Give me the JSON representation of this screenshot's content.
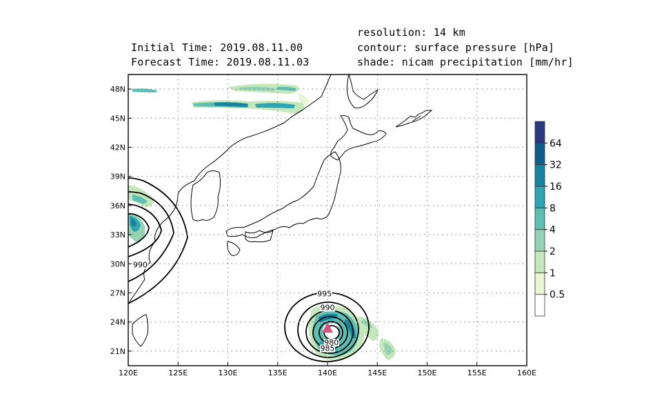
{
  "header": {
    "initial_time": "Initial Time: 2019.08.11.00",
    "forecast_time": "Forecast Time: 2019.08.11.03",
    "resolution": "resolution: 14 km",
    "contour": "contour: surface pressure [hPa]",
    "shade": "shade: nicam precipitation [mm/hr]"
  },
  "map": {
    "lon_range": [
      120,
      160
    ],
    "lat_range": [
      19.5,
      49.5
    ],
    "lon_ticks": [
      120,
      125,
      130,
      135,
      140,
      145,
      150,
      155,
      160
    ],
    "lon_labels": [
      "120E",
      "125E",
      "130E",
      "135E",
      "140E",
      "145E",
      "150E",
      "155E",
      "160E"
    ],
    "lat_ticks": [
      21,
      24,
      27,
      30,
      33,
      36,
      39,
      42,
      45,
      48
    ],
    "lat_labels": [
      "21N",
      "24N",
      "27N",
      "30N",
      "33N",
      "36N",
      "39N",
      "42N",
      "45N",
      "48N"
    ],
    "grid": "dotted",
    "typhoon_marker": {
      "lon": 140.0,
      "lat": 23.4,
      "color": "#d9507a"
    },
    "contour_labels": [
      {
        "text": "995",
        "lon": 139.7,
        "lat": 26.7
      },
      {
        "text": "990",
        "lon": 140.0,
        "lat": 25.3
      },
      {
        "text": "980",
        "lon": 140.4,
        "lat": 21.7
      },
      {
        "text": "985",
        "lon": 140.0,
        "lat": 21.1
      },
      {
        "text": "990",
        "lon": 121.2,
        "lat": 29.7
      }
    ]
  },
  "colorbar": {
    "labels": [
      "0.5",
      "1",
      "2",
      "4",
      "8",
      "16",
      "32",
      "64"
    ],
    "colors": [
      "#ffffff",
      "#e8f5d2",
      "#c5e8bb",
      "#94d4b4",
      "#5cbfb4",
      "#2ea5b2",
      "#17849f",
      "#0f5e8a",
      "#2b3a80"
    ]
  }
}
